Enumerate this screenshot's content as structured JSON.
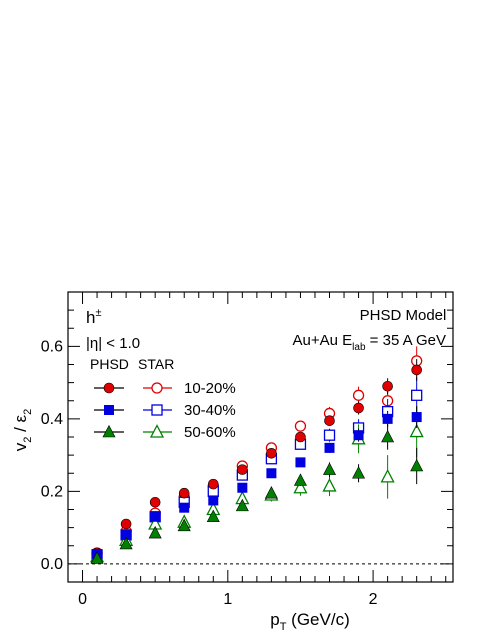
{
  "chart_data": {
    "type": "scatter",
    "xlabel_main": "p",
    "xlabel_sub": "T",
    "xlabel_rest": " (GeV/c)",
    "ylabel_a": "v",
    "ylabel_a_sub": "2",
    "ylabel_sep": " / ε",
    "ylabel_b_sub": "2",
    "xlim": [
      -0.1,
      2.55
    ],
    "ylim": [
      -0.05,
      0.75
    ],
    "xticks": [
      0,
      1,
      2
    ],
    "xtick_labels": [
      "0",
      "1",
      "2"
    ],
    "yticks": [
      0.0,
      0.2,
      0.4,
      0.6
    ],
    "ytick_labels": [
      "0.0",
      "0.2",
      "0.4",
      "0.6"
    ],
    "reference_line_y": 0.0,
    "annotations": {
      "particle": "h",
      "particle_sup": "±",
      "eta_cut": "|η| < 1.0",
      "model": "PHSD Model",
      "system_pre": "Au+Au E",
      "system_sub": "lab",
      "system_post": " = 35 A GeV"
    },
    "legend": {
      "header_phsd": "PHSD",
      "header_star": "STAR",
      "entries": [
        "10-20%",
        "30-40%",
        "50-60%"
      ]
    },
    "colors": {
      "10-20%": "#e00000",
      "30-40%": "#0000e0",
      "50-60%": "#008000"
    },
    "series": [
      {
        "name": "PHSD 10-20%",
        "marker": "circle",
        "filled": true,
        "color": "#e00000",
        "x": [
          0.1,
          0.3,
          0.5,
          0.7,
          0.9,
          1.1,
          1.3,
          1.5,
          1.7,
          1.9,
          2.1,
          2.3
        ],
        "y": [
          0.03,
          0.11,
          0.17,
          0.195,
          0.22,
          0.26,
          0.305,
          0.35,
          0.395,
          0.43,
          0.49,
          0.535
        ],
        "err": [
          0.005,
          0.007,
          0.008,
          0.008,
          0.008,
          0.009,
          0.01,
          0.012,
          0.014,
          0.018,
          0.022,
          0.03
        ]
      },
      {
        "name": "PHSD 30-40%",
        "marker": "square",
        "filled": true,
        "color": "#0000e0",
        "x": [
          0.1,
          0.3,
          0.5,
          0.7,
          0.9,
          1.1,
          1.3,
          1.5,
          1.7,
          1.9,
          2.1,
          2.3
        ],
        "y": [
          0.027,
          0.08,
          0.13,
          0.155,
          0.175,
          0.21,
          0.25,
          0.28,
          0.32,
          0.355,
          0.4,
          0.405
        ],
        "err": [
          0.005,
          0.006,
          0.007,
          0.007,
          0.008,
          0.009,
          0.01,
          0.012,
          0.014,
          0.018,
          0.022,
          0.03
        ]
      },
      {
        "name": "PHSD 50-60%",
        "marker": "triangle",
        "filled": true,
        "color": "#008000",
        "x": [
          0.1,
          0.3,
          0.5,
          0.7,
          0.9,
          1.1,
          1.3,
          1.5,
          1.7,
          1.9,
          2.1,
          2.3
        ],
        "y": [
          0.015,
          0.055,
          0.085,
          0.105,
          0.13,
          0.16,
          0.195,
          0.23,
          0.26,
          0.25,
          0.35,
          0.27
        ],
        "err": [
          0.005,
          0.006,
          0.007,
          0.008,
          0.009,
          0.01,
          0.012,
          0.015,
          0.02,
          0.025,
          0.035,
          0.05
        ]
      },
      {
        "name": "STAR 10-20%",
        "marker": "circle",
        "filled": false,
        "color": "#e00000",
        "x": [
          0.1,
          0.3,
          0.5,
          0.7,
          0.9,
          1.1,
          1.3,
          1.5,
          1.7,
          1.9,
          2.1,
          2.3
        ],
        "y": [
          0.03,
          0.09,
          0.14,
          0.185,
          0.215,
          0.27,
          0.32,
          0.38,
          0.415,
          0.465,
          0.45,
          0.56
        ],
        "err": [
          0.003,
          0.004,
          0.005,
          0.006,
          0.007,
          0.009,
          0.011,
          0.014,
          0.018,
          0.024,
          0.03,
          0.04
        ]
      },
      {
        "name": "STAR 30-40%",
        "marker": "square",
        "filled": false,
        "color": "#0000e0",
        "x": [
          0.1,
          0.3,
          0.5,
          0.7,
          0.9,
          1.1,
          1.3,
          1.5,
          1.7,
          1.9,
          2.1,
          2.3
        ],
        "y": [
          0.025,
          0.08,
          0.13,
          0.17,
          0.2,
          0.245,
          0.29,
          0.33,
          0.355,
          0.375,
          0.42,
          0.465
        ],
        "err": [
          0.003,
          0.004,
          0.005,
          0.006,
          0.007,
          0.009,
          0.011,
          0.014,
          0.018,
          0.024,
          0.035,
          0.05
        ]
      },
      {
        "name": "STAR 50-60%",
        "marker": "triangle",
        "filled": false,
        "color": "#008000",
        "x": [
          0.1,
          0.3,
          0.5,
          0.7,
          0.9,
          1.1,
          1.3,
          1.5,
          1.7,
          1.9,
          2.1,
          2.3
        ],
        "y": [
          0.02,
          0.065,
          0.11,
          0.115,
          0.15,
          0.18,
          0.19,
          0.21,
          0.215,
          0.345,
          0.24,
          0.365
        ],
        "err": [
          0.004,
          0.006,
          0.008,
          0.01,
          0.012,
          0.015,
          0.018,
          0.022,
          0.028,
          0.04,
          0.06,
          0.07
        ]
      }
    ]
  }
}
